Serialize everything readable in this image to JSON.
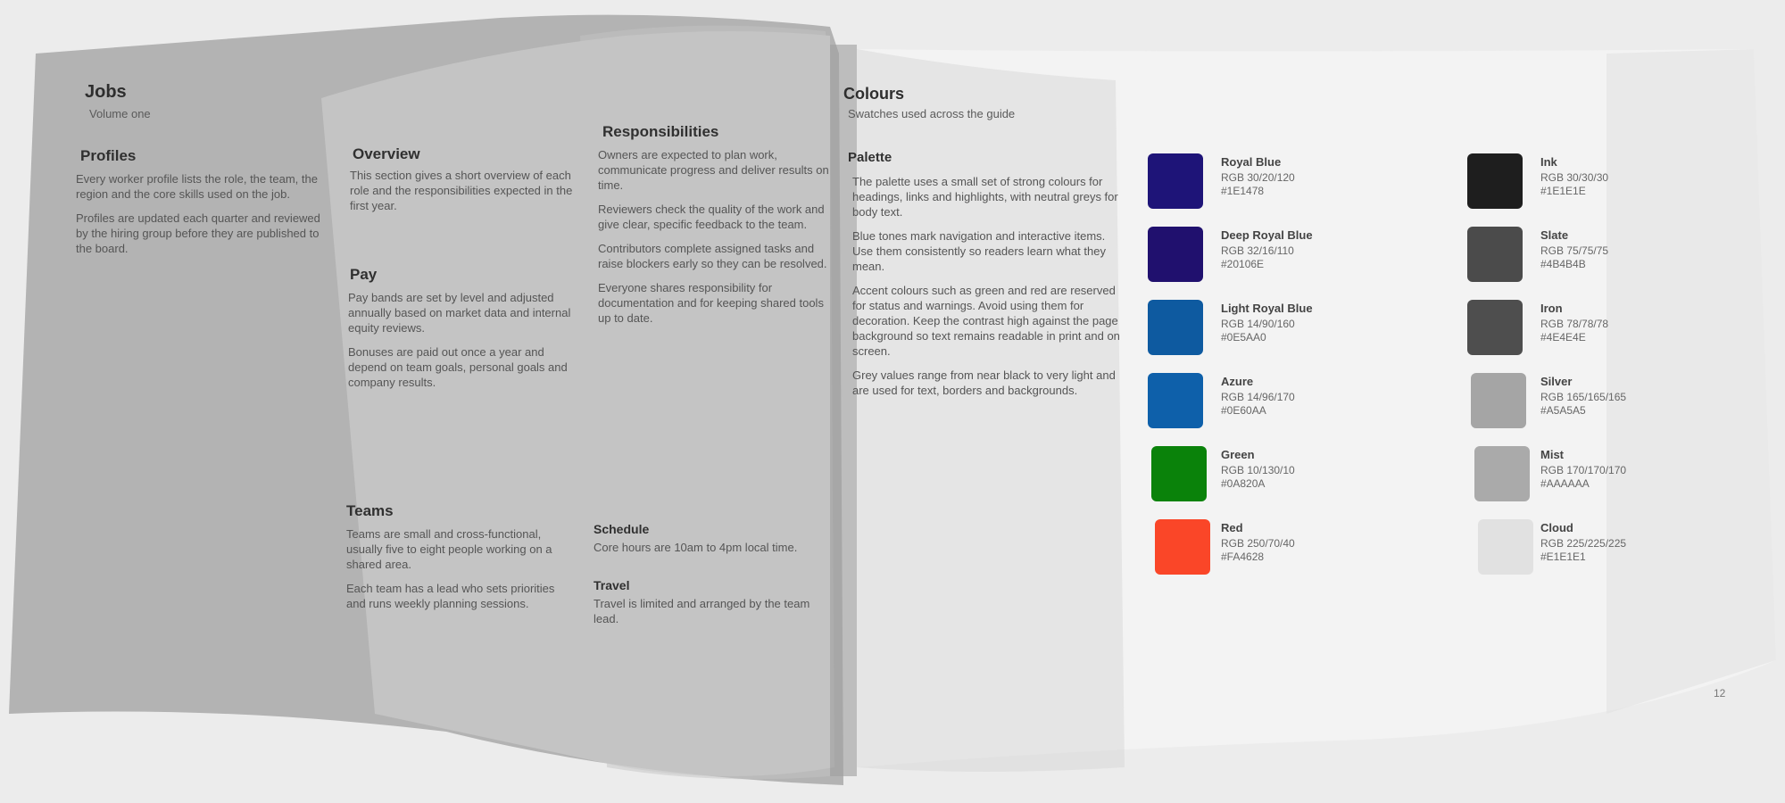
{
  "left_page": {
    "title": "Jobs",
    "subtitle": "Volume one",
    "col1": {
      "heading": "Profiles",
      "paragraphs": [
        "Every worker profile lists the role, the team, the region and the core skills used on the job.",
        "Profiles are updated each quarter and reviewed by the hiring group before they are published to the board."
      ]
    },
    "col2": {
      "heading": "Overview",
      "paragraphs": [
        "This section gives a short overview of each role and the responsibilities expected in the first year."
      ],
      "sub1": "Pay",
      "sub1_paragraphs": [
        "Pay bands are set by level and adjusted annually based on market data and internal equity reviews.",
        "Bonuses are paid out once a year and depend on team goals, personal goals and company results."
      ],
      "sub2": "Teams",
      "sub2_paragraphs": [
        "Teams are small and cross-functional, usually five to eight people working on a shared area.",
        "Each team has a lead who sets priorities and runs weekly planning sessions."
      ]
    },
    "col3": {
      "heading": "Responsibilities",
      "paragraphs": [
        "Owners are expected to plan work, communicate progress and deliver results on time.",
        "Reviewers check the quality of the work and give clear, specific feedback to the team.",
        "Contributors complete assigned tasks and raise blockers early so they can be resolved.",
        "Everyone shares responsibility for documentation and for keeping shared tools up to date."
      ],
      "sub1": "Schedule",
      "sub1_text": "Core hours are 10am to 4pm local time.",
      "sub2": "Travel",
      "sub2_text": "Travel is limited and arranged by the team lead."
    }
  },
  "right_page": {
    "title": "Colours",
    "subtitle": "Swatches used across the guide",
    "section_heading": "Palette",
    "paragraphs": [
      "The palette uses a small set of strong colours for headings, links and highlights, with neutral greys for body text.",
      "Blue tones mark navigation and interactive items. Use them consistently so readers learn what they mean.",
      "Accent colours such as green and red are reserved for status and warnings. Avoid using them for decoration. Keep the contrast high against the page background so text remains readable in print and on screen.",
      "Grey values range from near black to very light and are used for text, borders and backgrounds."
    ],
    "page_number": "12"
  },
  "swatches_left": [
    {
      "name": "Royal Blue",
      "meta1": "RGB 30/20/120",
      "meta2": "#1E1478",
      "color": "#1e1478"
    },
    {
      "name": "Deep Royal Blue",
      "meta1": "RGB 32/16/110",
      "meta2": "#20106E",
      "color": "#20106e"
    },
    {
      "name": "Light Royal Blue",
      "meta1": "RGB 14/90/160",
      "meta2": "#0E5AA0",
      "color": "#0e5aa0"
    },
    {
      "name": "Azure",
      "meta1": "RGB 14/96/170",
      "meta2": "#0E60AA",
      "color": "#0e60aa"
    },
    {
      "name": "Green",
      "meta1": "RGB 10/130/10",
      "meta2": "#0A820A",
      "color": "#0a820a"
    },
    {
      "name": "Red",
      "meta1": "RGB 250/70/40",
      "meta2": "#FA4628",
      "color": "#fa4628"
    }
  ],
  "swatches_right": [
    {
      "name": "Ink",
      "meta1": "RGB 30/30/30",
      "meta2": "#1E1E1E",
      "color": "#1e1e1e"
    },
    {
      "name": "Slate",
      "meta1": "RGB 75/75/75",
      "meta2": "#4B4B4B",
      "color": "#4b4b4b"
    },
    {
      "name": "Iron",
      "meta1": "RGB 78/78/78",
      "meta2": "#4E4E4E",
      "color": "#4e4e4e"
    },
    {
      "name": "Silver",
      "meta1": "RGB 165/165/165",
      "meta2": "#A5A5A5",
      "color": "#a5a5a5"
    },
    {
      "name": "Mist",
      "meta1": "RGB 170/170/170",
      "meta2": "#AAAAAA",
      "color": "#aaaaaa"
    },
    {
      "name": "Cloud",
      "meta1": "RGB 225/225/225",
      "meta2": "#E1E1E1",
      "color": "#e1e1e1"
    }
  ]
}
